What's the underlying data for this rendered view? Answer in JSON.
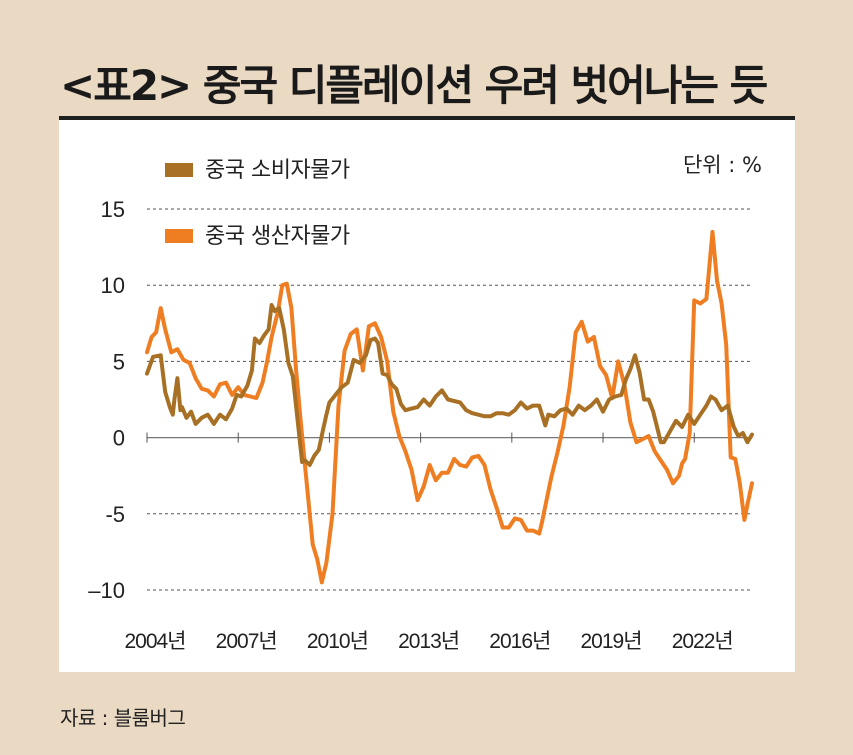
{
  "title": "<표2> 중국 디플레이션 우려 벗어나는 듯",
  "source": "자료 : 블룸버그",
  "chart_data": {
    "type": "line",
    "unit_label": "단위 : %",
    "ylim": [
      -10,
      15
    ],
    "yticks": [
      15,
      10,
      5,
      0,
      -5,
      -10
    ],
    "ytick_labels": [
      "15",
      "10",
      "5",
      "0",
      "-5",
      "–10"
    ],
    "xlim": [
      2004.0,
      2023.9
    ],
    "xticks": [
      2004,
      2007,
      2010,
      2013,
      2016,
      2019,
      2022
    ],
    "xtick_labels": [
      "2004년",
      "2007년",
      "2010년",
      "2013년",
      "2016년",
      "2019년",
      "2022년"
    ],
    "grid": "horizontal-dashed",
    "legend_position": "top-left",
    "series": [
      {
        "name": "중국 소비자물가",
        "color": "#a87025",
        "x": [
          2004.0,
          2004.2,
          2004.45,
          2004.6,
          2004.75,
          2004.85,
          2004.9,
          2005.0,
          2005.1,
          2005.15,
          2005.3,
          2005.45,
          2005.6,
          2005.8,
          2006.0,
          2006.2,
          2006.4,
          2006.6,
          2006.8,
          2006.95,
          2007.1,
          2007.3,
          2007.45,
          2007.55,
          2007.7,
          2007.85,
          2008.0,
          2008.1,
          2008.2,
          2008.35,
          2008.5,
          2008.65,
          2008.8,
          2008.95,
          2009.1,
          2009.2,
          2009.35,
          2009.5,
          2009.65,
          2009.8,
          2009.9,
          2010.0,
          2010.2,
          2010.4,
          2010.6,
          2010.8,
          2011.0,
          2011.2,
          2011.35,
          2011.5,
          2011.6,
          2011.75,
          2011.9,
          2012.05,
          2012.2,
          2012.35,
          2012.5,
          2012.7,
          2012.9,
          2013.1,
          2013.3,
          2013.5,
          2013.7,
          2013.9,
          2014.1,
          2014.3,
          2014.5,
          2014.7,
          2014.9,
          2015.1,
          2015.3,
          2015.5,
          2015.7,
          2015.9,
          2016.1,
          2016.3,
          2016.5,
          2016.7,
          2016.9,
          2017.1,
          2017.2,
          2017.4,
          2017.6,
          2017.8,
          2018.0,
          2018.2,
          2018.4,
          2018.6,
          2018.8,
          2019.0,
          2019.2,
          2019.4,
          2019.6,
          2019.75,
          2019.9,
          2020.05,
          2020.2,
          2020.35,
          2020.5,
          2020.65,
          2020.8,
          2020.9,
          2021.0,
          2021.2,
          2021.4,
          2021.6,
          2021.8,
          2022.0,
          2022.2,
          2022.4,
          2022.55,
          2022.7,
          2022.9,
          2023.1,
          2023.3,
          2023.45,
          2023.6,
          2023.75,
          2023.9
        ],
        "values": [
          4.2,
          5.3,
          5.4,
          3.0,
          2.0,
          1.5,
          2.5,
          3.9,
          1.8,
          2.0,
          1.3,
          1.7,
          0.9,
          1.3,
          1.5,
          0.9,
          1.5,
          1.2,
          1.9,
          2.8,
          2.7,
          3.4,
          4.4,
          6.5,
          6.2,
          6.7,
          7.1,
          8.7,
          8.3,
          8.5,
          7.1,
          4.9,
          4.0,
          1.2,
          -1.6,
          -1.5,
          -1.8,
          -1.2,
          -0.8,
          0.6,
          1.5,
          2.3,
          2.8,
          3.3,
          3.6,
          5.1,
          4.9,
          5.4,
          6.4,
          6.5,
          6.2,
          4.2,
          4.1,
          3.5,
          3.2,
          2.2,
          1.8,
          1.9,
          2.0,
          2.5,
          2.1,
          2.7,
          3.1,
          2.5,
          2.4,
          2.3,
          1.8,
          1.6,
          1.5,
          1.4,
          1.4,
          1.6,
          1.6,
          1.5,
          1.8,
          2.3,
          1.9,
          2.1,
          2.1,
          0.8,
          1.5,
          1.4,
          1.8,
          1.9,
          1.5,
          2.1,
          1.8,
          2.1,
          2.5,
          1.7,
          2.5,
          2.7,
          2.8,
          3.8,
          4.5,
          5.4,
          4.3,
          2.5,
          2.5,
          1.7,
          0.5,
          -0.3,
          -0.3,
          0.4,
          1.1,
          0.7,
          1.5,
          0.9,
          1.5,
          2.1,
          2.7,
          2.5,
          1.8,
          2.1,
          0.7,
          0.1,
          0.3,
          -0.3,
          0.2
        ]
      },
      {
        "name": "중국 생산자물가",
        "color": "#ef7d22",
        "x": [
          2004.0,
          2004.15,
          2004.3,
          2004.45,
          2004.6,
          2004.8,
          2005.0,
          2005.2,
          2005.4,
          2005.6,
          2005.8,
          2006.0,
          2006.2,
          2006.4,
          2006.6,
          2006.8,
          2007.0,
          2007.2,
          2007.4,
          2007.6,
          2007.8,
          2007.95,
          2008.1,
          2008.3,
          2008.45,
          2008.6,
          2008.75,
          2008.9,
          2009.05,
          2009.2,
          2009.35,
          2009.45,
          2009.6,
          2009.75,
          2009.9,
          2010.1,
          2010.3,
          2010.5,
          2010.7,
          2010.9,
          2011.1,
          2011.3,
          2011.5,
          2011.7,
          2011.9,
          2012.1,
          2012.3,
          2012.5,
          2012.7,
          2012.9,
          2013.1,
          2013.3,
          2013.5,
          2013.7,
          2013.9,
          2014.1,
          2014.3,
          2014.5,
          2014.7,
          2014.9,
          2015.1,
          2015.3,
          2015.5,
          2015.7,
          2015.9,
          2016.1,
          2016.3,
          2016.5,
          2016.7,
          2016.9,
          2017.0,
          2017.1,
          2017.3,
          2017.5,
          2017.7,
          2017.9,
          2018.1,
          2018.3,
          2018.5,
          2018.7,
          2018.9,
          2019.1,
          2019.3,
          2019.5,
          2019.7,
          2019.9,
          2020.1,
          2020.3,
          2020.5,
          2020.7,
          2020.9,
          2021.1,
          2021.3,
          2021.5,
          2021.6,
          2021.7,
          2021.85,
          2022.0,
          2022.2,
          2022.4,
          2022.6,
          2022.75,
          2022.9,
          2023.05,
          2023.2,
          2023.35,
          2023.5,
          2023.65,
          2023.75,
          2023.9
        ],
        "values": [
          5.6,
          6.6,
          6.9,
          8.5,
          7.1,
          5.6,
          5.8,
          5.1,
          4.9,
          3.9,
          3.2,
          3.1,
          2.7,
          3.5,
          3.6,
          2.8,
          3.3,
          2.8,
          2.7,
          2.6,
          3.6,
          5.0,
          6.6,
          8.2,
          10.0,
          10.1,
          8.5,
          4.5,
          1.2,
          -1.9,
          -5.0,
          -7.0,
          -8.0,
          -9.5,
          -8.2,
          -5.0,
          2.1,
          5.7,
          6.8,
          7.1,
          4.4,
          7.3,
          7.5,
          6.6,
          5.0,
          1.7,
          0.1,
          -0.9,
          -2.1,
          -4.1,
          -3.2,
          -1.8,
          -2.8,
          -2.3,
          -2.3,
          -1.4,
          -1.8,
          -1.9,
          -1.3,
          -1.2,
          -1.8,
          -3.4,
          -4.6,
          -5.9,
          -5.9,
          -5.3,
          -5.4,
          -6.1,
          -6.1,
          -6.3,
          -5.5,
          -4.5,
          -2.6,
          -1.0,
          0.8,
          3.3,
          6.9,
          7.6,
          6.3,
          6.6,
          4.7,
          4.1,
          2.6,
          5.0,
          3.5,
          1.0,
          -0.3,
          -0.1,
          0.1,
          -0.9,
          -1.5,
          -2.1,
          -3.0,
          -2.5,
          -1.7,
          -1.4,
          0.3,
          9.0,
          8.8,
          9.1,
          13.5,
          10.3,
          8.8,
          6.1,
          -1.3,
          -1.4,
          -3.0,
          -5.4,
          -4.4,
          -3.0
        ]
      }
    ]
  }
}
